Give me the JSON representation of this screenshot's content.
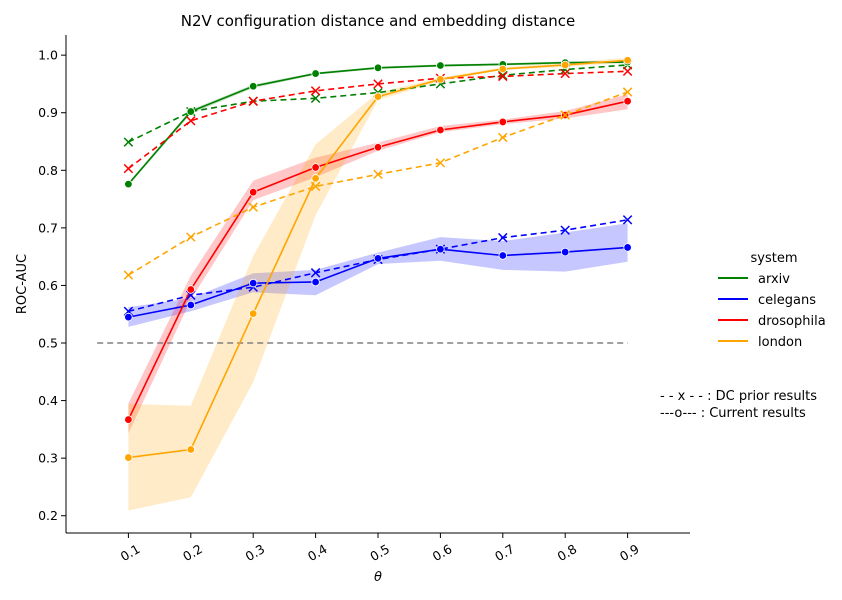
{
  "chart_data": {
    "type": "line",
    "title": "N2V configuration distance and embedding distance",
    "xlabel": "θ",
    "ylabel": "ROC-AUC",
    "x": [
      0.1,
      0.2,
      0.3,
      0.4,
      0.5,
      0.6,
      0.7,
      0.8,
      0.9
    ],
    "x_tick_labels": [
      "0.1",
      "0.2",
      "0.3",
      "0.4",
      "0.5",
      "0.6",
      "0.7",
      "0.8",
      "0.9"
    ],
    "xlim": [
      0.0,
      1.0
    ],
    "ylim": [
      0.17,
      1.035
    ],
    "y_ticks": [
      0.2,
      0.3,
      0.4,
      0.5,
      0.6,
      0.7,
      0.8,
      0.9,
      1.0
    ],
    "y_tick_labels": [
      "0.2",
      "0.3",
      "0.4",
      "0.5",
      "0.6",
      "0.7",
      "0.8",
      "0.9",
      "1.0"
    ],
    "grid": false,
    "legend_title": "system",
    "legend_position": "right",
    "series": [
      {
        "name": "arxiv",
        "color": "#008000",
        "current": [
          0.776,
          0.902,
          0.946,
          0.968,
          0.978,
          0.982,
          0.984,
          0.987,
          0.988
        ],
        "current_lower": [
          0.773,
          0.898,
          0.943,
          0.966,
          0.976,
          0.98,
          0.982,
          0.985,
          0.986
        ],
        "current_upper": [
          0.779,
          0.905,
          0.949,
          0.97,
          0.98,
          0.984,
          0.986,
          0.989,
          0.99
        ],
        "prior": [
          0.849,
          0.902,
          0.92,
          0.925,
          0.935,
          0.95,
          0.965,
          0.975,
          0.983
        ]
      },
      {
        "name": "celegans",
        "color": "#0000ff",
        "current": [
          0.545,
          0.566,
          0.604,
          0.606,
          0.647,
          0.663,
          0.652,
          0.658,
          0.666
        ],
        "current_lower": [
          0.528,
          0.555,
          0.588,
          0.583,
          0.637,
          0.643,
          0.627,
          0.624,
          0.641
        ],
        "current_upper": [
          0.562,
          0.578,
          0.621,
          0.627,
          0.657,
          0.684,
          0.677,
          0.692,
          0.708
        ],
        "prior": [
          0.555,
          0.583,
          0.597,
          0.622,
          0.645,
          0.663,
          0.683,
          0.696,
          0.714
        ]
      },
      {
        "name": "drosophila",
        "color": "#ff0000",
        "current": [
          0.367,
          0.593,
          0.762,
          0.805,
          0.84,
          0.87,
          0.884,
          0.896,
          0.92
        ],
        "current_lower": [
          0.343,
          0.575,
          0.748,
          0.788,
          0.834,
          0.866,
          0.88,
          0.89,
          0.906
        ],
        "current_upper": [
          0.395,
          0.617,
          0.782,
          0.822,
          0.848,
          0.877,
          0.888,
          0.903,
          0.932
        ],
        "prior": [
          0.803,
          0.886,
          0.92,
          0.938,
          0.95,
          0.96,
          0.963,
          0.968,
          0.972
        ]
      },
      {
        "name": "london",
        "color": "#ffa500",
        "current": [
          0.301,
          0.315,
          0.551,
          0.786,
          0.928,
          0.958,
          0.976,
          0.983,
          0.991
        ],
        "current_lower": [
          0.209,
          0.232,
          0.432,
          0.722,
          0.922,
          0.955,
          0.974,
          0.98,
          0.987
        ],
        "current_upper": [
          0.394,
          0.391,
          0.651,
          0.845,
          0.935,
          0.961,
          0.979,
          0.987,
          0.995
        ],
        "prior": [
          0.618,
          0.684,
          0.736,
          0.772,
          0.793,
          0.813,
          0.857,
          0.896,
          0.936
        ]
      }
    ],
    "reference_line": {
      "y": 0.5,
      "x_range": [
        0.05,
        0.9
      ],
      "color": "#808080"
    },
    "annotations": [
      "- - x - - : DC prior results",
      "---o--- : Current results"
    ]
  }
}
